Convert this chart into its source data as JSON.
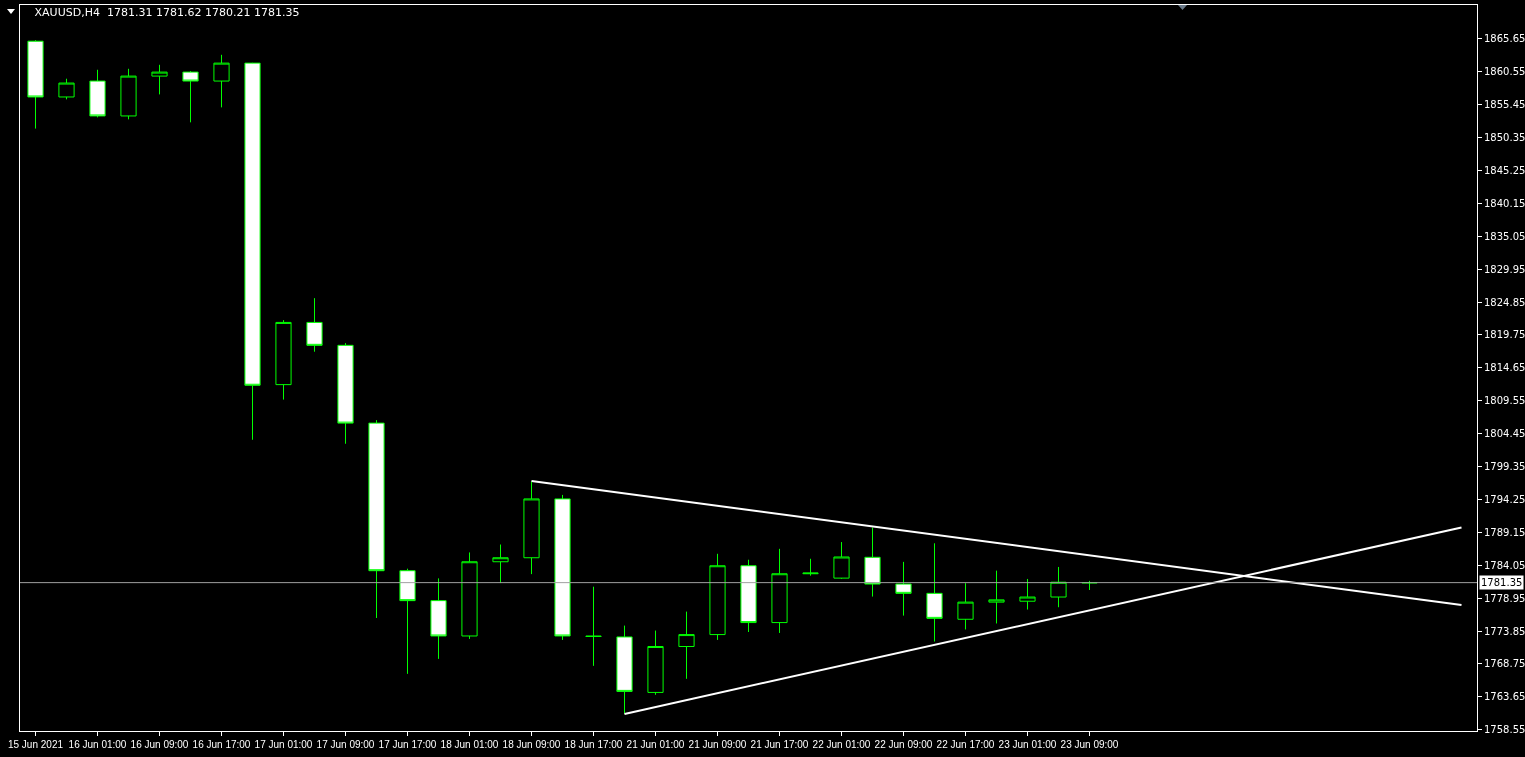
{
  "chart_data": {
    "type": "candlestick",
    "title": "XAUUSD,H4  1781.31 1781.62 1780.21 1781.35",
    "color": "#00ff00",
    "categories": [
      "15 Jun 2021",
      null,
      "16 Jun 01:00",
      null,
      "16 Jun 09:00",
      null,
      "16 Jun 17:00",
      null,
      "17 Jun 01:00",
      null,
      "17 Jun 09:00",
      null,
      "17 Jun 17:00",
      null,
      "18 Jun 01:00",
      null,
      "18 Jun 09:00",
      null,
      "18 Jun 17:00",
      null,
      "21 Jun 01:00",
      null,
      "21 Jun 09:00",
      null,
      "21 Jun 17:00",
      null,
      "22 Jun 01:00",
      null,
      "22 Jun 09:00",
      null,
      "22 Jun 17:00",
      null,
      "23 Jun 01:00",
      null,
      "23 Jun 09:00",
      null,
      null,
      null,
      null,
      null,
      null,
      null,
      null,
      null,
      null,
      null,
      null
    ],
    "ohlc": [
      [
        1865.29,
        1865.45,
        1851.74,
        1856.64
      ],
      [
        1856.64,
        1859.47,
        1856.27,
        1858.8
      ],
      [
        1859.11,
        1860.86,
        1853.48,
        1853.7
      ],
      [
        1853.7,
        1861.01,
        1853.17,
        1859.88
      ],
      [
        1859.88,
        1861.63,
        1857.04,
        1860.5
      ],
      [
        1860.5,
        1860.66,
        1852.71,
        1859.11
      ],
      [
        1859.11,
        1863.18,
        1855.03,
        1861.89
      ],
      [
        1861.89,
        1861.94,
        1803.5,
        1811.95
      ],
      [
        1812.05,
        1822.05,
        1809.73,
        1821.69
      ],
      [
        1821.69,
        1825.45,
        1817.15,
        1818.14
      ],
      [
        1818.14,
        1818.49,
        1802.88,
        1806.08
      ],
      [
        1806.08,
        1806.54,
        1775.87,
        1783.2
      ],
      [
        1783.2,
        1783.51,
        1767.21,
        1778.56
      ],
      [
        1778.56,
        1782.01,
        1769.53,
        1773.08
      ],
      [
        1773.08,
        1786.03,
        1772.62,
        1784.59
      ],
      [
        1784.59,
        1787.26,
        1781.28,
        1785.21
      ],
      [
        1785.21,
        1797.05,
        1782.67,
        1794.33
      ],
      [
        1794.33,
        1794.95,
        1772.47,
        1773.08
      ],
      [
        1773.08,
        1780.72,
        1768.45,
        1773.0
      ],
      [
        1772.93,
        1774.69,
        1761.03,
        1764.49
      ],
      [
        1764.33,
        1773.92,
        1763.96,
        1771.45
      ],
      [
        1771.45,
        1776.86,
        1766.44,
        1773.3
      ],
      [
        1773.3,
        1785.82,
        1772.47,
        1783.97
      ],
      [
        1783.97,
        1784.9,
        1773.7,
        1775.16
      ],
      [
        1775.16,
        1786.59,
        1773.55,
        1782.73
      ],
      [
        1782.73,
        1785.05,
        1782.43,
        1782.83
      ],
      [
        1782.05,
        1787.64,
        1781.95,
        1785.33
      ],
      [
        1785.28,
        1789.89,
        1779.19,
        1781.13
      ],
      [
        1781.13,
        1784.57,
        1776.24,
        1779.69
      ],
      [
        1779.69,
        1787.45,
        1772.22,
        1775.81
      ],
      [
        1775.67,
        1781.27,
        1774.09,
        1778.33
      ],
      [
        1778.33,
        1783.21,
        1775.02,
        1778.68
      ],
      [
        1778.47,
        1781.92,
        1777.18,
        1779.12
      ],
      [
        1779.12,
        1783.78,
        1777.54,
        1781.42
      ],
      [
        1781.31,
        1781.62,
        1780.21,
        1781.35
      ],
      null,
      null,
      null,
      null,
      null,
      null,
      null,
      null,
      null,
      null,
      null,
      null
    ],
    "series": [
      {
        "type": "line",
        "color": "#ffffff",
        "values": [
          null,
          null,
          null,
          null,
          null,
          null,
          null,
          null,
          null,
          null,
          null,
          null,
          null,
          null,
          null,
          null,
          1797.1,
          null,
          null,
          null,
          null,
          null,
          null,
          null,
          null,
          null,
          null,
          null,
          null,
          null,
          null,
          null,
          null,
          null,
          null,
          null,
          null,
          null,
          null,
          null,
          null,
          null,
          null,
          null,
          null,
          null,
          1777.9
        ]
      },
      {
        "type": "line",
        "color": "#ffffff",
        "values": [
          null,
          null,
          null,
          null,
          null,
          null,
          null,
          null,
          null,
          null,
          null,
          null,
          null,
          null,
          null,
          null,
          null,
          null,
          null,
          1761.0,
          null,
          null,
          null,
          null,
          null,
          null,
          null,
          null,
          null,
          null,
          null,
          null,
          null,
          null,
          null,
          null,
          null,
          null,
          null,
          null,
          null,
          null,
          null,
          null,
          null,
          null,
          1789.9
        ]
      }
    ],
    "ylim": [
      1758.35,
      1870.9
    ],
    "yticks": [
      1758.55,
      1763.65,
      1768.75,
      1773.85,
      1778.95,
      1784.05,
      1789.15,
      1794.25,
      1799.35,
      1804.45,
      1809.55,
      1814.65,
      1819.75,
      1824.85,
      1829.95,
      1835.05,
      1840.15,
      1845.25,
      1850.35,
      1855.45,
      1860.55,
      1865.65
    ],
    "ref_lines": [
      {
        "axis": "y",
        "value": 1781.35,
        "label": "1781.35",
        "color": "#a0a0a0"
      }
    ]
  }
}
